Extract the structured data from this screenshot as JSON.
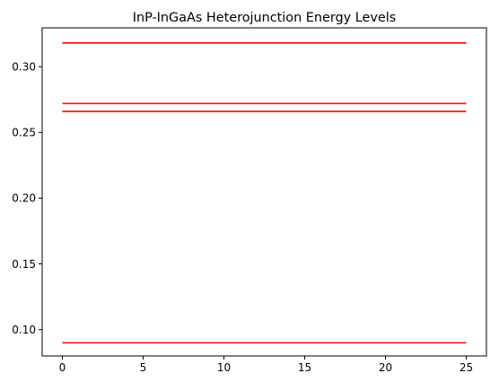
{
  "chart_data": {
    "type": "line",
    "title": "InP-InGaAs Heterojunction Energy Levels",
    "xlabel": "",
    "ylabel": "",
    "xlim": [
      -1.25,
      26.25
    ],
    "ylim": [
      0.08,
      0.3295
    ],
    "x_ticks": [
      0,
      5,
      10,
      15,
      20,
      25
    ],
    "x_tick_labels": [
      "0",
      "5",
      "10",
      "15",
      "20",
      "25"
    ],
    "y_ticks": [
      0.1,
      0.15,
      0.2,
      0.25,
      0.3
    ],
    "y_tick_labels": [
      "0.10",
      "0.15",
      "0.20",
      "0.25",
      "0.30"
    ],
    "grid": false,
    "legend": "none",
    "series": [
      {
        "x": [
          0,
          25
        ],
        "values": [
          0.318,
          0.318
        ],
        "color": "#ff0000"
      },
      {
        "x": [
          0,
          25
        ],
        "values": [
          0.272,
          0.272
        ],
        "color": "#ff0000"
      },
      {
        "x": [
          0,
          25
        ],
        "values": [
          0.266,
          0.266
        ],
        "color": "#ff0000"
      },
      {
        "x": [
          0,
          25
        ],
        "values": [
          0.09,
          0.09
        ],
        "color": "#ff0000"
      }
    ]
  }
}
